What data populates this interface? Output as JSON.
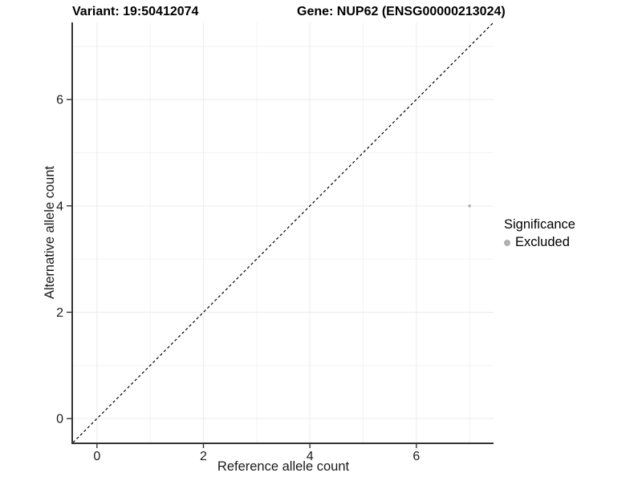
{
  "titles": {
    "variant": "Variant: 19:50412074",
    "gene": "Gene: NUP62 (ENSG00000213024)"
  },
  "chart_data": {
    "type": "scatter",
    "title": "Variant: 19:50412074 — Gene: NUP62 (ENSG00000213024)",
    "xlabel": "Reference allele count",
    "ylabel": "Alternative allele count",
    "xlim": [
      -0.45,
      7.45
    ],
    "ylim": [
      -0.45,
      7.45
    ],
    "xticks": [
      0,
      2,
      4,
      6
    ],
    "yticks": [
      0,
      2,
      4,
      6
    ],
    "minor_grid": [
      1,
      3,
      5,
      7
    ],
    "grid": true,
    "reference_line": {
      "type": "identity y=x",
      "style": "dashed",
      "color": "#000000"
    },
    "series": [
      {
        "name": "Excluded",
        "color": "#b3b3b3",
        "point_radius": 1.8,
        "points": [
          {
            "x": 7,
            "y": 4
          }
        ]
      }
    ],
    "legend": {
      "title": "Significance",
      "position": "right",
      "entries": [
        {
          "label": "Excluded",
          "color": "#b0b0b0"
        }
      ]
    }
  },
  "colors": {
    "background": "#ffffff",
    "grid_major": "#ebebeb",
    "grid_minor": "#f3f3f3",
    "axis_line": "#333333",
    "identity_line": "#000000",
    "tick_label": "#1a1a1a"
  }
}
